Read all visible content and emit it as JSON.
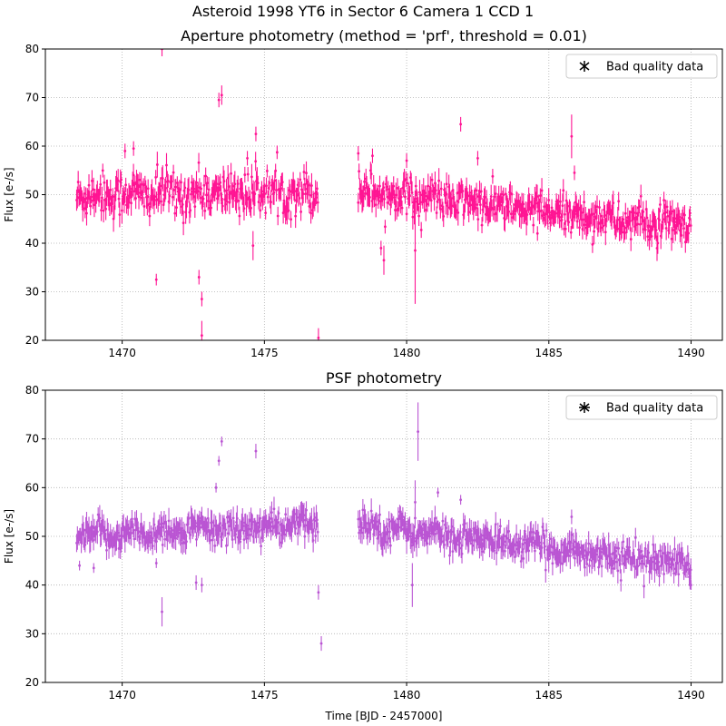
{
  "figure": {
    "suptitle": "Asteroid 1998 YT6 in Sector 6 Camera 1 CCD 1"
  },
  "chart_data": [
    {
      "type": "scatter",
      "title": "Aperture photometry (method = 'prf', threshold = 0.01)",
      "xlabel": "",
      "ylabel": "Flux [e-/s]",
      "xlim": [
        1467.3,
        1491.1
      ],
      "ylim": [
        20,
        80
      ],
      "xticks": [
        1470,
        1475,
        1480,
        1485,
        1490
      ],
      "yticks": [
        20,
        30,
        40,
        50,
        60,
        70,
        80
      ],
      "grid": true,
      "legend": {
        "label": "Bad quality data",
        "placement": "top-right"
      },
      "color": "#ff1493",
      "segments": [
        {
          "t_start": 1468.4,
          "t_end": 1476.9,
          "base_start": 50.0,
          "base_end": 50.5,
          "scatter": 3.0
        },
        {
          "t_start": 1478.3,
          "t_end": 1490.0,
          "base_start": 51.0,
          "base_end": 43.0,
          "scatter": 2.5
        }
      ],
      "outliers": [
        {
          "t": 1470.1,
          "y": 59.0,
          "err": 1.5
        },
        {
          "t": 1470.4,
          "y": 59.5,
          "err": 1.5
        },
        {
          "t": 1471.2,
          "y": 32.5,
          "err": 1.2
        },
        {
          "t": 1471.4,
          "y": 80.0,
          "err": 1.5
        },
        {
          "t": 1472.7,
          "y": 33.0,
          "err": 1.5
        },
        {
          "t": 1472.8,
          "y": 28.5,
          "err": 1.5
        },
        {
          "t": 1472.8,
          "y": 21.0,
          "err": 3.0
        },
        {
          "t": 1473.4,
          "y": 69.5,
          "err": 1.5
        },
        {
          "t": 1473.5,
          "y": 70.5,
          "err": 2.0
        },
        {
          "t": 1474.4,
          "y": 57.5,
          "err": 1.5
        },
        {
          "t": 1474.6,
          "y": 39.5,
          "err": 3.0
        },
        {
          "t": 1474.7,
          "y": 62.5,
          "err": 1.5
        },
        {
          "t": 1476.9,
          "y": 20.5,
          "err": 2.0
        },
        {
          "t": 1478.3,
          "y": 58.5,
          "err": 1.5
        },
        {
          "t": 1478.8,
          "y": 58.0,
          "err": 1.5
        },
        {
          "t": 1479.1,
          "y": 39.0,
          "err": 1.5
        },
        {
          "t": 1479.2,
          "y": 36.5,
          "err": 3.0
        },
        {
          "t": 1480.0,
          "y": 57.0,
          "err": 1.5
        },
        {
          "t": 1480.3,
          "y": 38.5,
          "err": 11.0
        },
        {
          "t": 1481.9,
          "y": 64.5,
          "err": 1.5
        },
        {
          "t": 1482.5,
          "y": 57.5,
          "err": 1.5
        },
        {
          "t": 1484.6,
          "y": 42.0,
          "err": 1.5
        },
        {
          "t": 1485.8,
          "y": 62.0,
          "err": 4.5
        },
        {
          "t": 1485.9,
          "y": 54.5,
          "err": 1.5
        },
        {
          "t": 1486.0,
          "y": 44.5,
          "err": 1.5
        }
      ]
    },
    {
      "type": "scatter",
      "title": "PSF photometry",
      "xlabel": "Time [BJD - 2457000]",
      "ylabel": "Flux [e-/s]",
      "xlim": [
        1467.3,
        1491.1
      ],
      "ylim": [
        20,
        80
      ],
      "xticks": [
        1470,
        1475,
        1480,
        1485,
        1490
      ],
      "yticks": [
        20,
        30,
        40,
        50,
        60,
        70,
        80
      ],
      "grid": true,
      "legend": {
        "label": "Bad quality data",
        "placement": "top-right"
      },
      "color": "#ba55d3",
      "segments": [
        {
          "t_start": 1468.4,
          "t_end": 1476.9,
          "base_start": 50.0,
          "base_end": 52.5,
          "scatter": 2.0
        },
        {
          "t_start": 1478.3,
          "t_end": 1490.0,
          "base_start": 52.5,
          "base_end": 44.0,
          "scatter": 2.0
        }
      ],
      "outliers": [
        {
          "t": 1468.5,
          "y": 44.0,
          "err": 1.0
        },
        {
          "t": 1469.0,
          "y": 43.5,
          "err": 1.0
        },
        {
          "t": 1471.2,
          "y": 44.5,
          "err": 1.0
        },
        {
          "t": 1471.4,
          "y": 34.5,
          "err": 3.0
        },
        {
          "t": 1472.6,
          "y": 40.5,
          "err": 1.5
        },
        {
          "t": 1472.8,
          "y": 40.0,
          "err": 1.5
        },
        {
          "t": 1473.3,
          "y": 60.0,
          "err": 1.0
        },
        {
          "t": 1473.4,
          "y": 65.5,
          "err": 1.0
        },
        {
          "t": 1473.5,
          "y": 69.5,
          "err": 1.0
        },
        {
          "t": 1474.7,
          "y": 67.5,
          "err": 1.5
        },
        {
          "t": 1476.9,
          "y": 38.5,
          "err": 1.5
        },
        {
          "t": 1477.0,
          "y": 28.0,
          "err": 1.5
        },
        {
          "t": 1480.2,
          "y": 40.0,
          "err": 4.5
        },
        {
          "t": 1480.3,
          "y": 57.0,
          "err": 4.5
        },
        {
          "t": 1480.4,
          "y": 71.5,
          "err": 6.0
        },
        {
          "t": 1481.1,
          "y": 59.0,
          "err": 1.0
        },
        {
          "t": 1481.9,
          "y": 57.5,
          "err": 1.0
        },
        {
          "t": 1485.8,
          "y": 54.0,
          "err": 1.5
        },
        {
          "t": 1490.0,
          "y": 40.0,
          "err": 1.0
        }
      ]
    }
  ]
}
